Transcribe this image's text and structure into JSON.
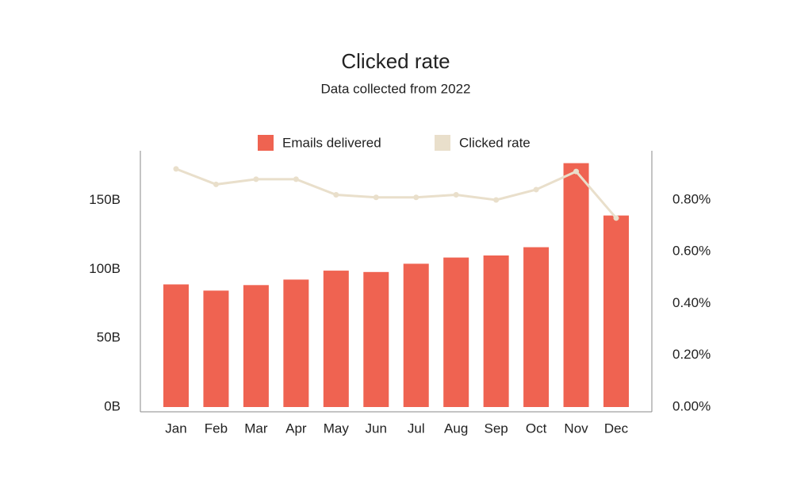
{
  "chart_data": {
    "type": "bar",
    "title": "Clicked rate",
    "subtitle": "Data collected from 2022",
    "categories": [
      "Jan",
      "Feb",
      "Mar",
      "Apr",
      "May",
      "Jun",
      "Jul",
      "Aug",
      "Sep",
      "Oct",
      "Nov",
      "Dec"
    ],
    "series": [
      {
        "name": "Emails delivered",
        "type": "bar",
        "color": "#ef6351",
        "values": [
          89000000000,
          84500000000,
          88500000000,
          92500000000,
          99000000000,
          98000000000,
          104000000000,
          108500000000,
          110000000000,
          116000000000,
          177000000000,
          139000000000
        ]
      },
      {
        "name": "Clicked rate",
        "type": "line",
        "axis": "y2",
        "color": "#e9dfcb",
        "values": [
          0.92,
          0.86,
          0.88,
          0.88,
          0.82,
          0.81,
          0.81,
          0.82,
          0.8,
          0.84,
          0.91,
          0.73
        ]
      }
    ],
    "ylim": [
      0,
      186000000000
    ],
    "yticks": [
      {
        "value": 0,
        "label": "0B"
      },
      {
        "value": 50000000000,
        "label": "50B"
      },
      {
        "value": 100000000000,
        "label": "100B"
      },
      {
        "value": 150000000000,
        "label": "150B"
      }
    ],
    "y2lim": [
      0,
      0.99
    ],
    "y2ticks": [
      {
        "value": 0,
        "label": "0.00%"
      },
      {
        "value": 0.2,
        "label": "0.20%"
      },
      {
        "value": 0.4,
        "label": "0.40%"
      },
      {
        "value": 0.6,
        "label": "0.60%"
      },
      {
        "value": 0.8,
        "label": "0.80%"
      }
    ],
    "grid": false,
    "legend": "top"
  }
}
